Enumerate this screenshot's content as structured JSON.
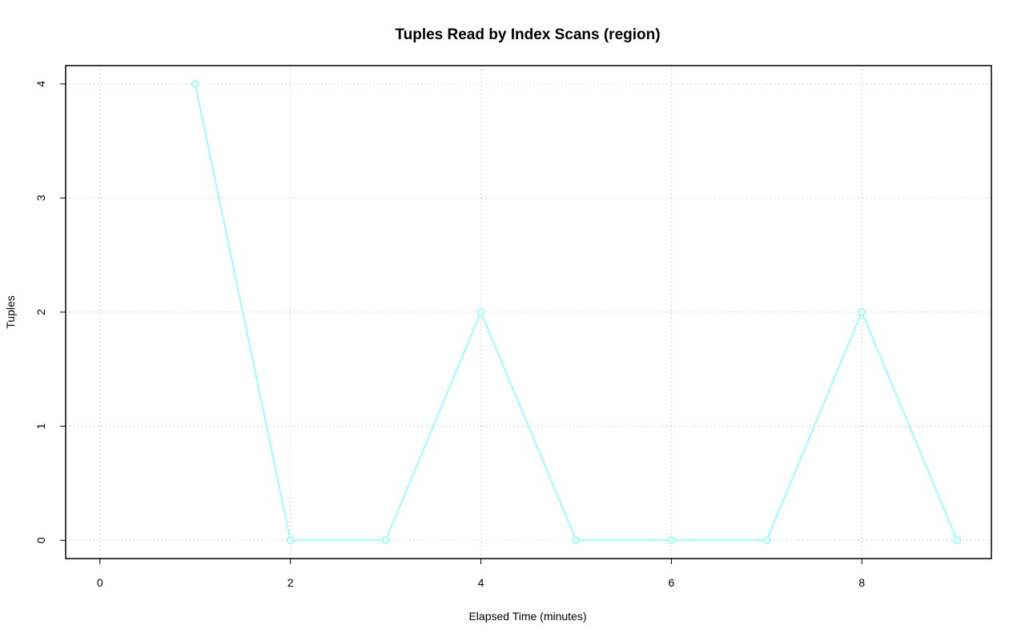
{
  "chart_data": {
    "type": "line",
    "title": "Tuples Read by Index Scans (region)",
    "x_label": "Elapsed Time (minutes)",
    "y_label": "Tuples",
    "x": [
      1,
      2,
      3,
      4,
      5,
      6,
      7,
      8,
      9
    ],
    "series": [
      {
        "name": "region",
        "color": "#7fffff",
        "values": [
          4,
          0,
          0,
          2,
          0,
          0,
          0,
          2,
          0
        ]
      }
    ],
    "xlim": [
      -0.36,
      9.36
    ],
    "xticks": [
      0,
      2,
      4,
      6,
      8
    ],
    "ylim": [
      -0.16,
      4.16
    ],
    "yticks": [
      0,
      1,
      2,
      3,
      4
    ],
    "grid": true
  }
}
